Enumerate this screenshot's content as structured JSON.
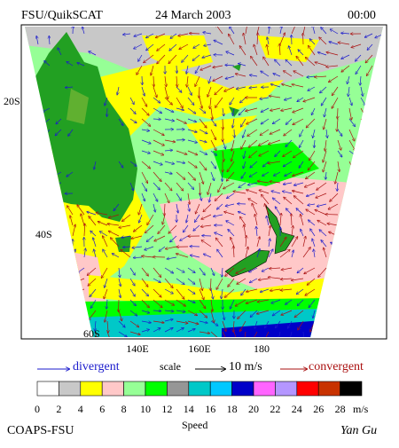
{
  "header": {
    "title": "FSU/QuikSCAT",
    "date": "24 March 2003",
    "time": "00:00"
  },
  "map": {
    "lat_labels": [
      "20S",
      "40S",
      "60S"
    ],
    "lon_labels": [
      "140E",
      "160E",
      "180"
    ]
  },
  "legend": {
    "divergent": "divergent",
    "scale": "scale",
    "scale_value": "10 m/s",
    "convergent": "convergent"
  },
  "colorbar": {
    "labels": [
      0,
      2,
      4,
      6,
      8,
      10,
      12,
      14,
      16,
      18,
      20,
      22,
      24,
      26,
      28
    ],
    "unit": "m/s",
    "colors": [
      "#ffffff",
      "#c8c8c8",
      "#ffff00",
      "#ffc8c8",
      "#96ff96",
      "#00ff00",
      "#969696",
      "#00c8c8",
      "#00c8ff",
      "#0000c8",
      "#ff64ff",
      "#b496ff",
      "#ff0000",
      "#c83200",
      "#000000"
    ],
    "caption": "Speed"
  },
  "footer": {
    "left": "COAPS-FSU",
    "right": "Yan Gu"
  }
}
